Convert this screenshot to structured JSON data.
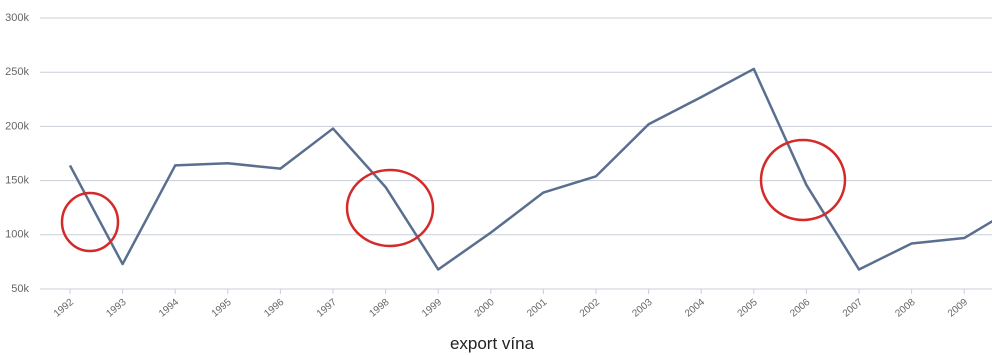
{
  "chart_data": {
    "type": "line",
    "title": "export vína",
    "categories": [
      "1992",
      "1993",
      "1994",
      "1995",
      "1996",
      "1997",
      "1998",
      "1999",
      "2000",
      "2001",
      "2002",
      "2003",
      "2004",
      "2005",
      "2006",
      "2007",
      "2008",
      "2009",
      null
    ],
    "series": [
      {
        "name": "export",
        "color": "#5a6f8f",
        "values": [
          164000,
          73000,
          164000,
          166000,
          161000,
          198000,
          144000,
          68000,
          102000,
          139000,
          154000,
          202000,
          227000,
          253000,
          146000,
          68000,
          92000,
          97000,
          126000
        ]
      }
    ],
    "ylim": [
      50000,
      300000
    ],
    "yticks": [
      {
        "value": 50000,
        "label": "50k"
      },
      {
        "value": 100000,
        "label": "100k"
      },
      {
        "value": 150000,
        "label": "150k"
      },
      {
        "value": 200000,
        "label": "200k"
      },
      {
        "value": 250000,
        "label": "250k"
      },
      {
        "value": 300000,
        "label": "300k"
      }
    ],
    "grid": true
  }
}
